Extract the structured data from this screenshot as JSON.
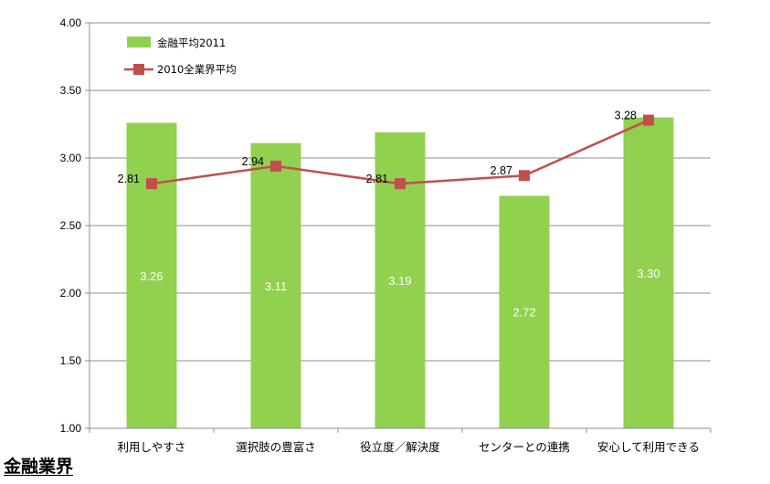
{
  "chart_data": {
    "type": "bar",
    "categories": [
      "利用しやすさ",
      "選択肢の豊富さ",
      "役立度／解決度",
      "センターとの連携",
      "安心して利用できる"
    ],
    "ylim": [
      1.0,
      4.0
    ],
    "y_ticks": [
      "1.00",
      "1.50",
      "2.00",
      "2.50",
      "3.00",
      "3.50",
      "4.00"
    ],
    "grid": true,
    "legend_position": "top-left",
    "series": [
      {
        "name": "金融平均2011",
        "kind": "bar",
        "color": "#92d050",
        "values": [
          3.26,
          3.11,
          3.19,
          2.72,
          3.3
        ],
        "labels": [
          "3.26",
          "3.11",
          "3.19",
          "2.72",
          "3.30"
        ]
      },
      {
        "name": "2010全業界平均",
        "kind": "line",
        "color": "#c0504d",
        "values": [
          2.81,
          2.94,
          2.81,
          2.87,
          3.28
        ],
        "labels": [
          "2.81",
          "2.94",
          "2.81",
          "2.87",
          "3.28"
        ]
      }
    ]
  },
  "footer": {
    "title": "金融業界"
  }
}
